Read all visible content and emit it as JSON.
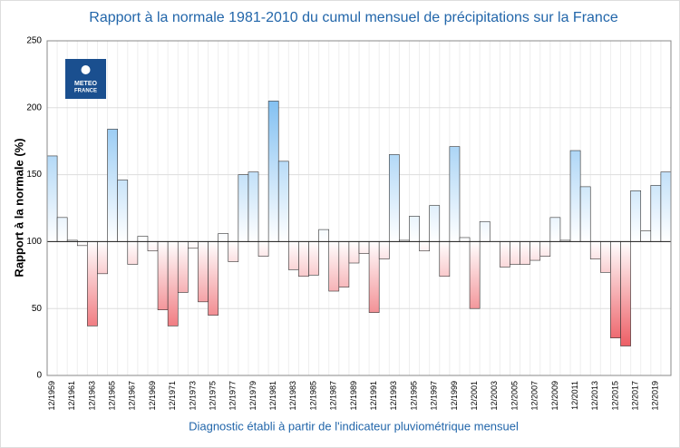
{
  "chart_data": {
    "type": "bar",
    "title": "Rapport à la normale 1981-2010 du cumul mensuel de précipitations sur la France",
    "xlabel": "Diagnostic établi à partir de l'indicateur pluviométrique mensuel",
    "ylabel": "Rapport à la normale (%)",
    "logo": [
      "METEO",
      "FRANCE"
    ],
    "categories": [
      "12/1959",
      null,
      "12/1961",
      null,
      "12/1963",
      null,
      "12/1965",
      null,
      "12/1967",
      null,
      "12/1969",
      null,
      "12/1971",
      null,
      "12/1973",
      null,
      "12/1975",
      null,
      "12/1977",
      null,
      "12/1979",
      null,
      "12/1981",
      null,
      "12/1983",
      null,
      "12/1985",
      null,
      "12/1987",
      null,
      "12/1989",
      null,
      "12/1991",
      null,
      "12/1993",
      null,
      "12/1995",
      null,
      "12/1997",
      null,
      "12/1999",
      null,
      "12/2001",
      null,
      "12/2003",
      null,
      "12/2005",
      null,
      "12/2007",
      null,
      "12/2009",
      null,
      "12/2011",
      null,
      "12/2013",
      null,
      "12/2015",
      null,
      "12/2017",
      null,
      "12/2019",
      null
    ],
    "values": [
      164,
      118,
      101,
      97,
      37,
      76,
      184,
      146,
      83,
      104,
      93,
      49,
      37,
      62,
      95,
      55,
      45,
      106,
      85,
      150,
      152,
      89,
      205,
      160,
      79,
      74,
      75,
      109,
      63,
      66,
      84,
      91,
      47,
      87,
      165,
      101,
      119,
      93,
      127,
      74,
      171,
      103,
      50,
      115,
      100,
      81,
      83,
      83,
      86,
      89,
      118,
      101,
      168,
      141,
      87,
      77,
      28,
      22,
      138,
      108,
      142,
      152
    ],
    "baseline": 100,
    "above_color": "#4ea6ec",
    "below_color": "#e8313a",
    "ylim": [
      0,
      250
    ],
    "yticks": [
      0,
      50,
      100,
      150,
      200,
      250
    ],
    "grid": true
  }
}
